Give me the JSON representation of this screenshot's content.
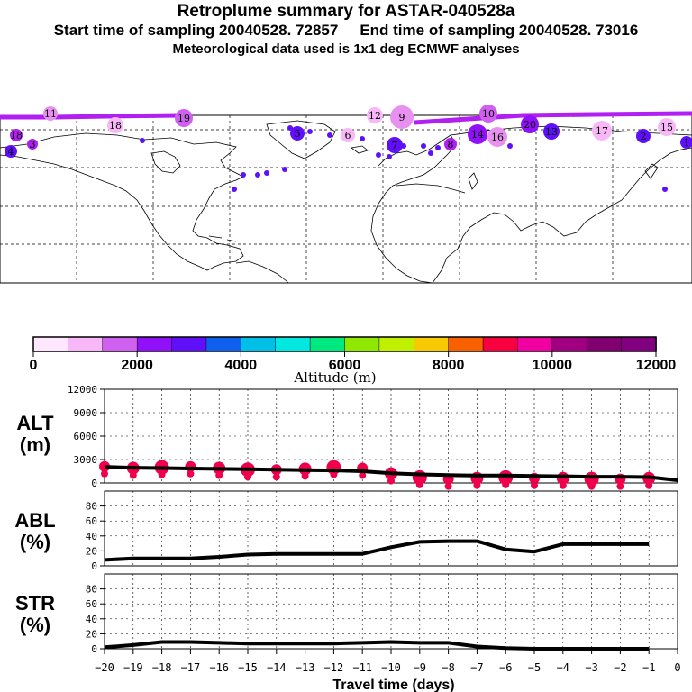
{
  "header": {
    "title": "Retroplume summary for ASTAR-040528a",
    "start_label": "Start time of sampling 20040528. 72857",
    "end_label": "End time of sampling 20040528. 73016",
    "met_label": "Meteorological data used is 1x1 deg ECMWF analyses"
  },
  "colorbar": {
    "tick_labels": [
      "0",
      "2000",
      "4000",
      "6000",
      "8000",
      "10000",
      "12000"
    ],
    "label": "Altitude (m)",
    "colors": [
      "#ffe8ff",
      "#f8b8f8",
      "#e890f0",
      "#d060f0",
      "#b020f0",
      "#9010f8",
      "#6010f8",
      "#3030f8",
      "#1060f0",
      "#0090e8",
      "#00c0e8",
      "#00e8e0",
      "#00f0b0",
      "#00e880",
      "#40e800",
      "#90e800",
      "#c0f000",
      "#f0f000",
      "#f8c800",
      "#f8a000",
      "#f86000",
      "#f80040",
      "#f00080",
      "#f000a0",
      "#d00090",
      "#a00080",
      "#800070",
      "#600060",
      "#800080",
      "#800080"
    ]
  },
  "map": {
    "trajectory_color": "#b020f0",
    "point_labels": [
      "11",
      "18",
      "19",
      "18",
      "12",
      "9",
      "10",
      "20",
      "16",
      "17",
      "15",
      "13",
      "14",
      "8",
      "7",
      "6",
      "5",
      "4",
      "3",
      "2",
      "1"
    ]
  },
  "chart_data": [
    {
      "type": "line",
      "panel": "ALT",
      "ylabel": "ALT",
      "yunit": "(m)",
      "ylim": [
        0,
        12000
      ],
      "yticks": [
        "12000",
        "9000",
        "6000",
        "3000",
        "0"
      ],
      "x": [
        -20,
        -19,
        -18,
        -17,
        -16,
        -15,
        -14,
        -13,
        -12,
        -11,
        -10,
        -9,
        -8,
        -7,
        -6,
        -5,
        -4,
        -3,
        -2,
        -1,
        0
      ],
      "series": [
        {
          "name": "mean altitude",
          "values": [
            2050,
            1950,
            1900,
            1850,
            1800,
            1750,
            1700,
            1650,
            1600,
            1500,
            1250,
            1100,
            1000,
            950,
            950,
            900,
            850,
            800,
            800,
            750,
            350
          ]
        }
      ],
      "points": [
        {
          "x": -20,
          "y": 2100
        },
        {
          "x": -19,
          "y": 1900
        },
        {
          "x": -18,
          "y": 2000
        },
        {
          "x": -17,
          "y": 2100
        },
        {
          "x": -16,
          "y": 1900
        },
        {
          "x": -15,
          "y": 1700
        },
        {
          "x": -14,
          "y": 1700
        },
        {
          "x": -13,
          "y": 1800
        },
        {
          "x": -12,
          "y": 2000
        },
        {
          "x": -11,
          "y": 1900
        },
        {
          "x": -10,
          "y": 1200
        },
        {
          "x": -9,
          "y": 700
        },
        {
          "x": -8,
          "y": 500
        },
        {
          "x": -7,
          "y": 600
        },
        {
          "x": -6,
          "y": 700
        },
        {
          "x": -5,
          "y": 600
        },
        {
          "x": -4,
          "y": 600
        },
        {
          "x": -3,
          "y": 500
        },
        {
          "x": -2,
          "y": 500
        },
        {
          "x": -1,
          "y": 600
        }
      ],
      "grid": true
    },
    {
      "type": "line",
      "panel": "ABL",
      "ylabel": "ABL",
      "yunit": "(%)",
      "ylim": [
        0,
        100
      ],
      "yticks": [
        "80",
        "60",
        "40",
        "20",
        "0"
      ],
      "x": [
        -20,
        -19,
        -18,
        -17,
        -16,
        -15,
        -14,
        -13,
        -12,
        -11,
        -10,
        -9,
        -8,
        -7,
        -6,
        -5,
        -4,
        -3,
        -2,
        -1
      ],
      "series": [
        {
          "name": "ABL fraction",
          "values": [
            8,
            10,
            10,
            10,
            12,
            15,
            16,
            16,
            16,
            16,
            25,
            32,
            33,
            33,
            22,
            19,
            29,
            29,
            29,
            29
          ]
        }
      ],
      "grid": true
    },
    {
      "type": "line",
      "panel": "STR",
      "ylabel": "STR",
      "yunit": "(%)",
      "ylim": [
        0,
        100
      ],
      "yticks": [
        "80",
        "60",
        "40",
        "20",
        "0"
      ],
      "x": [
        -20,
        -19,
        -18,
        -17,
        -16,
        -15,
        -14,
        -13,
        -12,
        -11,
        -10,
        -9,
        -8,
        -7,
        -6,
        -5,
        -4,
        -3,
        -2,
        -1
      ],
      "series": [
        {
          "name": "stratospheric fraction",
          "values": [
            2,
            5,
            9,
            9,
            8,
            7,
            7,
            7,
            7,
            8,
            9,
            8,
            8,
            3,
            1,
            0,
            0,
            0,
            0,
            0
          ]
        }
      ],
      "grid": true
    }
  ],
  "xaxis": {
    "label": "Travel time (days)",
    "tick_labels": [
      "−20",
      "−19",
      "−18",
      "−17",
      "−16",
      "−15",
      "−14",
      "−13",
      "−12",
      "−11",
      "−10",
      "−9",
      "−8",
      "−7",
      "−6",
      "−5",
      "−4",
      "−3",
      "−2",
      "−1",
      "0"
    ]
  },
  "style": {
    "line_color": "#000000",
    "point_color": "#f0004a"
  }
}
